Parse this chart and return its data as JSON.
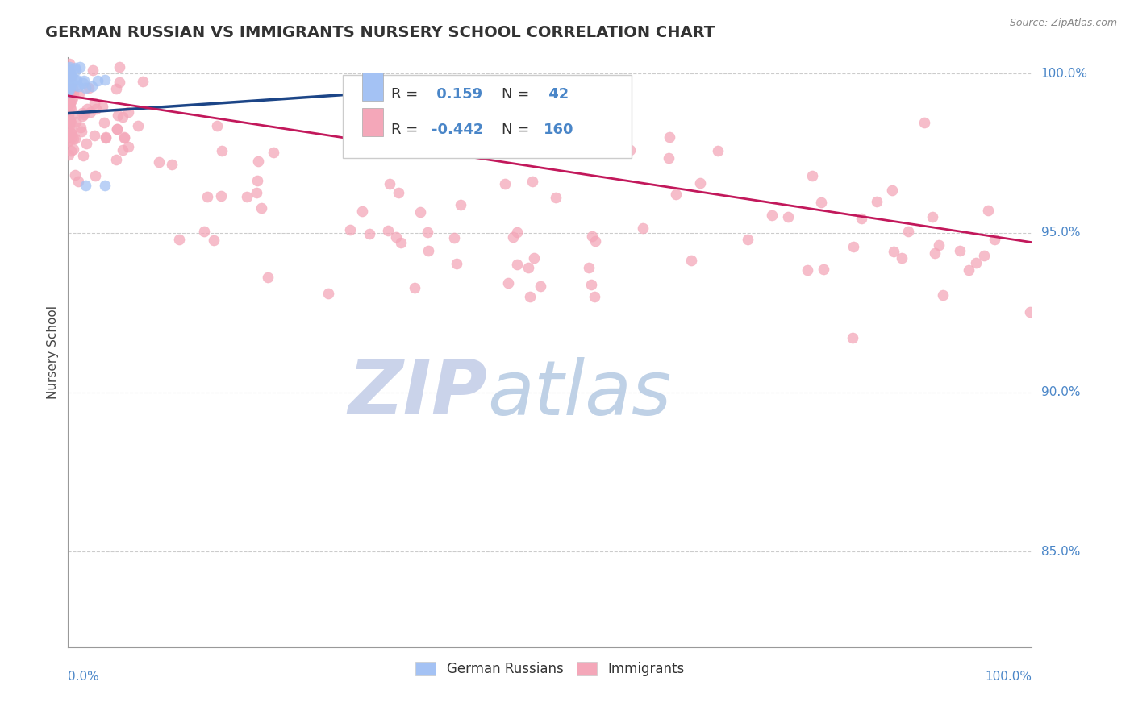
{
  "title": "GERMAN RUSSIAN VS IMMIGRANTS NURSERY SCHOOL CORRELATION CHART",
  "source_text": "Source: ZipAtlas.com",
  "ylabel": "Nursery School",
  "blue_R": 0.159,
  "blue_N": 42,
  "pink_R": -0.442,
  "pink_N": 160,
  "blue_color": "#a4c2f4",
  "pink_color": "#f4a7b9",
  "blue_line_color": "#1c4587",
  "pink_line_color": "#c2185b",
  "legend_label_blue": "German Russians",
  "legend_label_pink": "Immigrants",
  "title_color": "#333333",
  "axis_label_color": "#4a86c8",
  "background_color": "#ffffff",
  "y_min": 0.82,
  "y_max": 1.005,
  "x_min": 0.0,
  "x_max": 1.0,
  "y_ticks": [
    1.0,
    0.95,
    0.9,
    0.85
  ],
  "y_tick_labels": [
    "100.0%",
    "95.0%",
    "90.0%",
    "85.0%"
  ],
  "blue_line_x": [
    0.0,
    0.32
  ],
  "blue_line_y": [
    0.9875,
    0.994
  ],
  "pink_line_x": [
    0.0,
    1.0
  ],
  "pink_line_y": [
    0.993,
    0.947
  ]
}
